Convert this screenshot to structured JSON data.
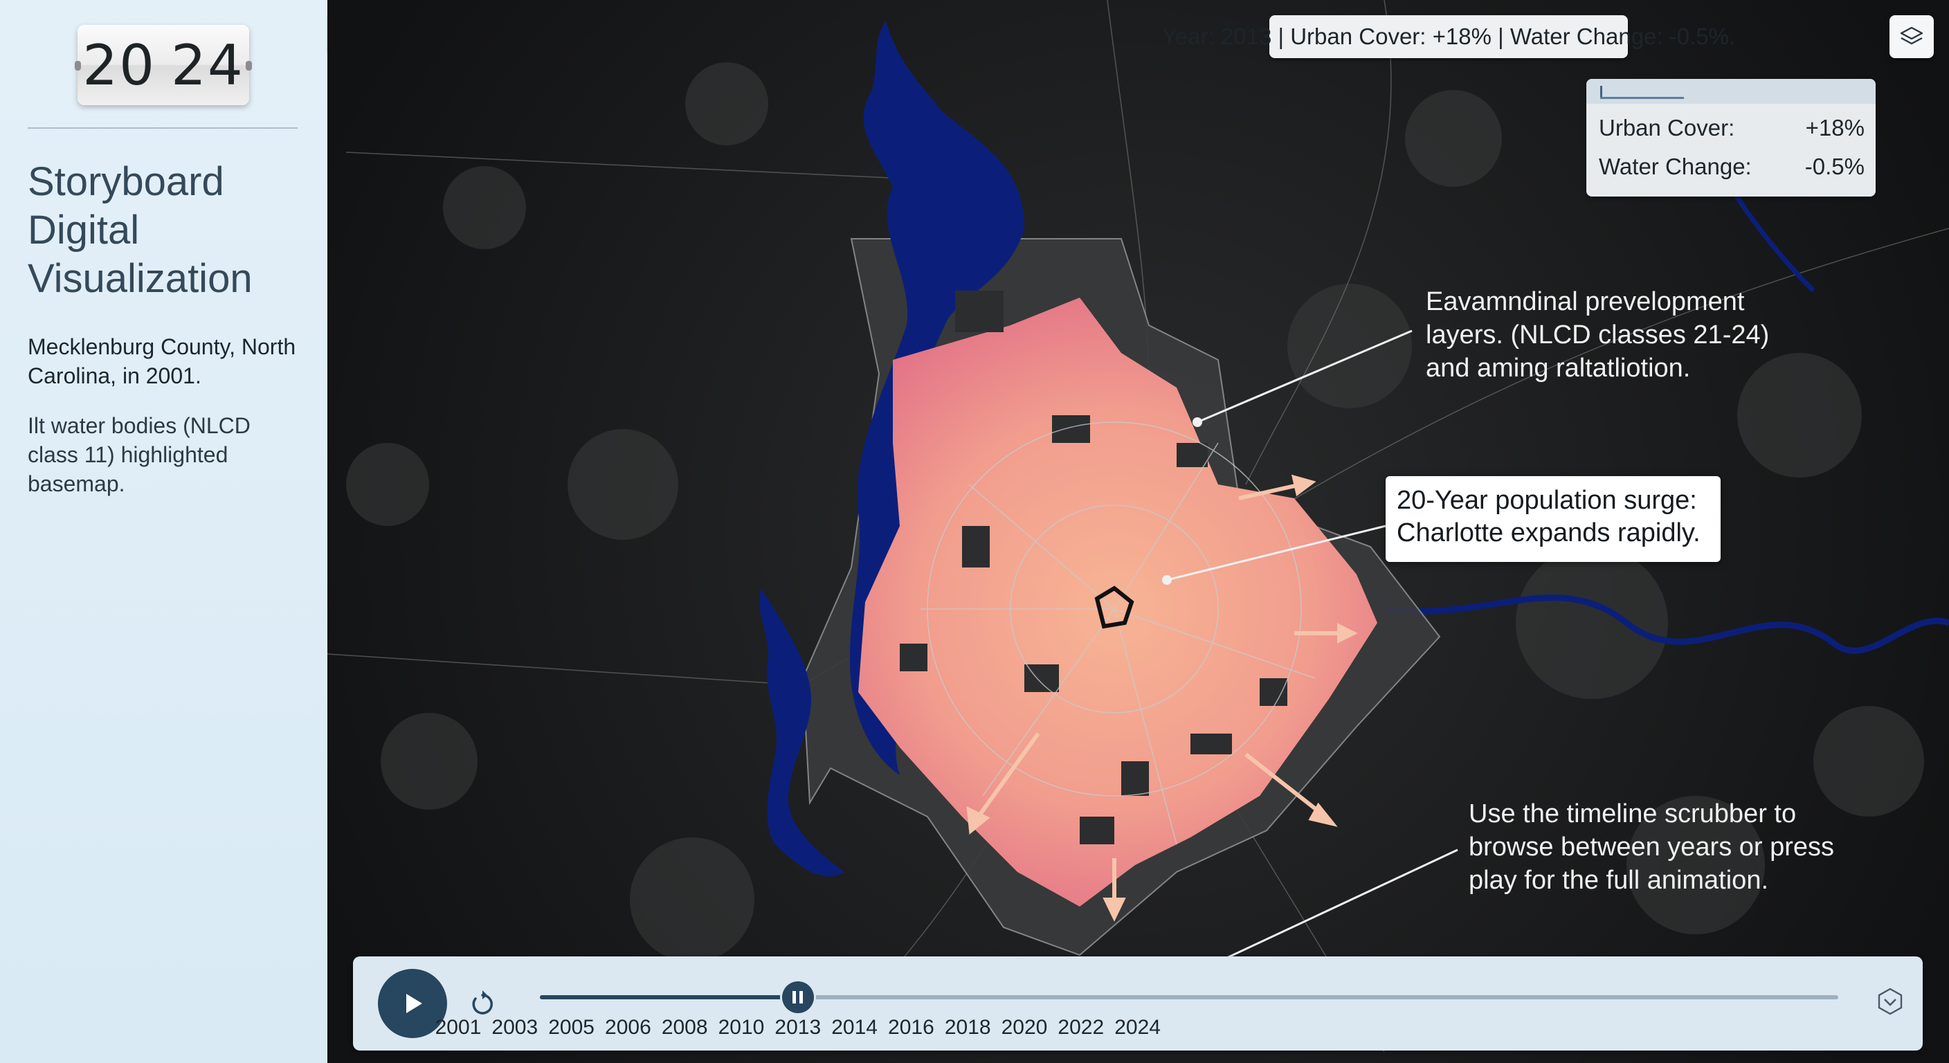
{
  "sidebar": {
    "clock": {
      "left": "20",
      "right": "24"
    },
    "title": "Storyboard Digital Visualization",
    "subtitle": "Mecklenburg County, North Carolina, in 2001.",
    "note": "Ilt water bodies (NLCD class 11) highlighted basemap.",
    "collapse_icon": "chevron-left-icon"
  },
  "status": {
    "text": "Year: 2013 | Urban Cover: +18% | Water Change: -0.5%.",
    "layers_icon": "layers-icon"
  },
  "stats": {
    "progress_fraction": 0.29,
    "rows": [
      {
        "label": "Urban Cover:",
        "value": "+18%"
      },
      {
        "label": "Water Change:",
        "value": "-0.5%"
      }
    ]
  },
  "annotations": {
    "development": [
      "Eavamndinal prevelopment",
      "layers. (NLCD classes 21-24)",
      "and aming raltatliotion."
    ],
    "surge": [
      "20-Year population surge:",
      "Charlotte expands rapidly."
    ],
    "help": [
      "Use the timeline scrubber to",
      "browse between years or press",
      "play for the full animation."
    ]
  },
  "timeline": {
    "years": [
      "2001",
      "2003",
      "2005",
      "2006",
      "2008",
      "2010",
      "2013",
      "2014",
      "2016",
      "2018",
      "2020",
      "2022",
      "2024"
    ],
    "current_index": 6,
    "play_icon": "play-icon",
    "reset_icon": "reset-icon",
    "expand_icon": "chevron-down-icon"
  },
  "colors": {
    "water": "#0b1f7a",
    "urban_early": "#e4758c",
    "urban_late": "#f6b492",
    "sidebar": "#e4f0f8",
    "accent": "#27465f"
  }
}
